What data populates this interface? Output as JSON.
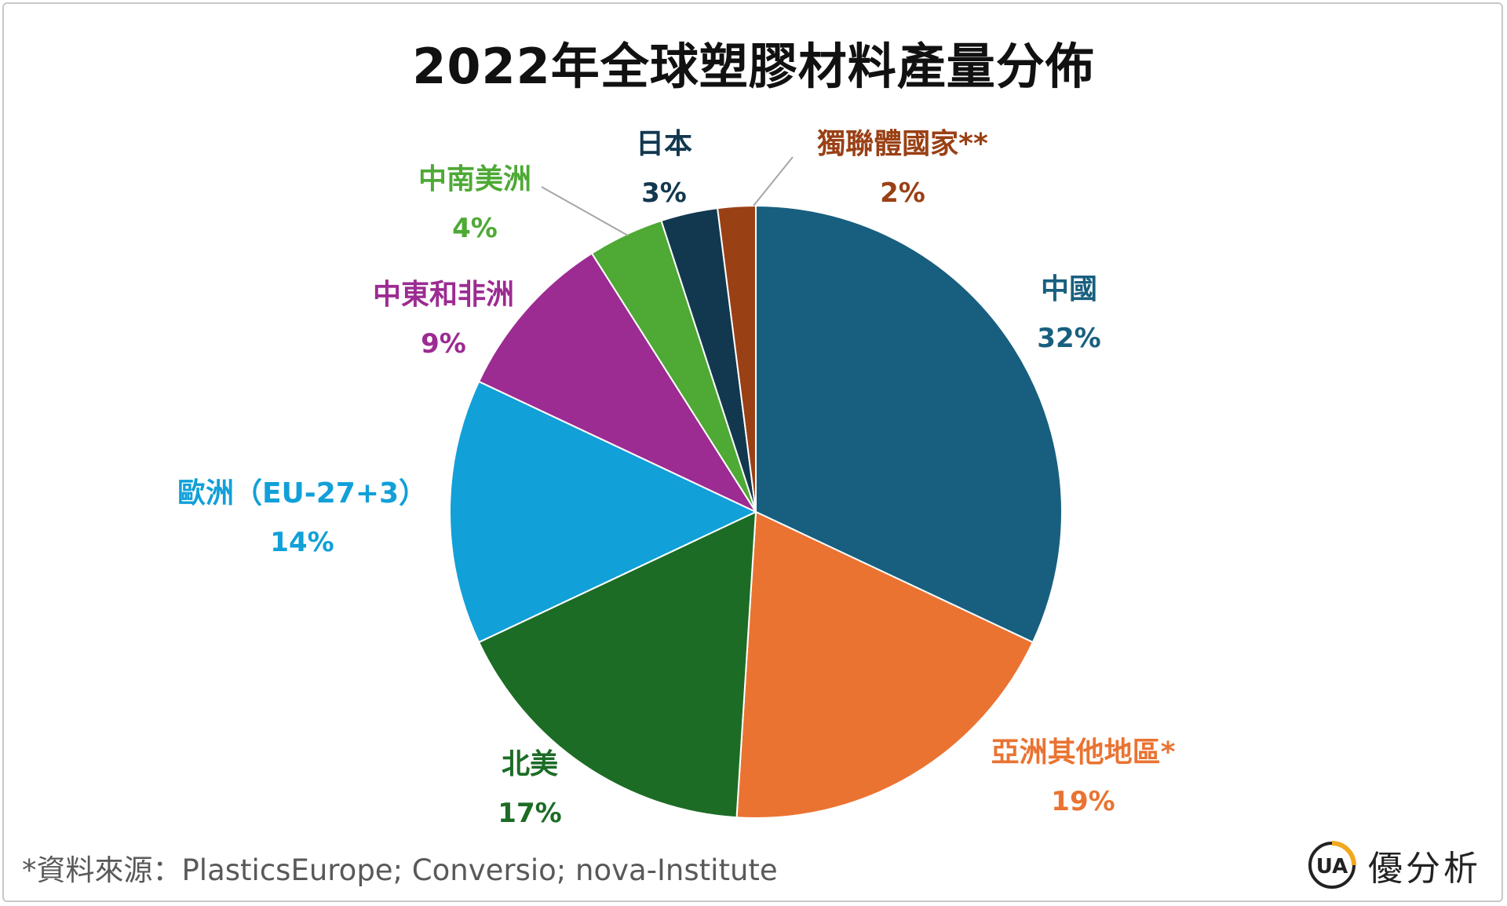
{
  "page": {
    "source": "*資料來源：PlasticsEurope; Conversio; nova-Institute",
    "brand_text": "優分析",
    "brand_logo_text": "UA"
  },
  "chart_data": {
    "type": "pie",
    "title": "2022年全球塑膠材料產量分佈",
    "slices": [
      {
        "label": "中國",
        "value_label": "32%",
        "value": 32,
        "color": "#185F7F"
      },
      {
        "label": "亞洲其他地區*",
        "value_label": "19%",
        "value": 19,
        "color": "#EA7332"
      },
      {
        "label": "北美",
        "value_label": "17%",
        "value": 17,
        "color": "#1C6C26"
      },
      {
        "label": "歐洲（EU-27+3）",
        "value_label": "14%",
        "value": 14,
        "color": "#11A0D8"
      },
      {
        "label": "中東和非洲",
        "value_label": "9%",
        "value": 9,
        "color": "#9C2B92"
      },
      {
        "label": "中南美洲",
        "value_label": "4%",
        "value": 4,
        "color": "#4EA935"
      },
      {
        "label": "日本",
        "value_label": "3%",
        "value": 3,
        "color": "#12384F"
      },
      {
        "label": "獨聯體國家**",
        "value_label": "2%",
        "value": 2,
        "color": "#9A4015"
      }
    ],
    "legend": "none",
    "start": "top, clockwise"
  }
}
